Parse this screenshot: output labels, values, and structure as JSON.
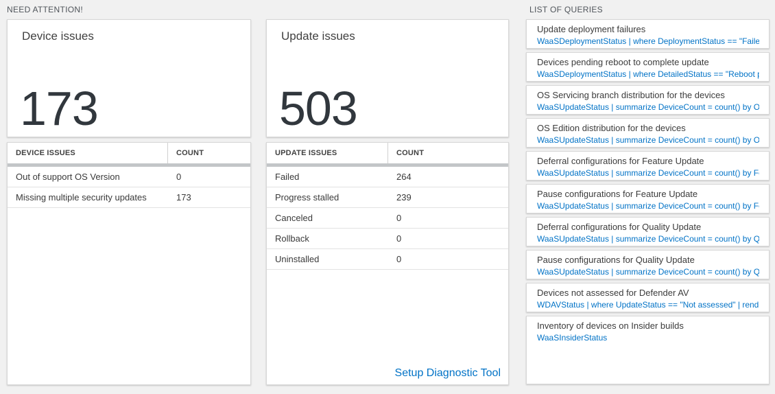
{
  "colors": {
    "page_bg": "#f1f1f1",
    "accent_blue": "#0072c6",
    "number_color": "#31373d",
    "gray_bar": "#c3c6c8"
  },
  "need_attention": {
    "header": "NEED ATTENTION!",
    "device_card": {
      "title": "Device issues",
      "value": "173"
    },
    "device_table": {
      "columns": [
        "DEVICE ISSUES",
        "COUNT"
      ],
      "rows": [
        {
          "label": "Out of support OS Version",
          "count": "0"
        },
        {
          "label": "Missing multiple security updates",
          "count": "173"
        }
      ]
    },
    "update_card": {
      "title": "Update issues",
      "value": "503"
    },
    "update_table": {
      "columns": [
        "UPDATE ISSUES",
        "COUNT"
      ],
      "rows": [
        {
          "label": "Failed",
          "count": "264"
        },
        {
          "label": "Progress stalled",
          "count": "239"
        },
        {
          "label": "Canceled",
          "count": "0"
        },
        {
          "label": "Rollback",
          "count": "0"
        },
        {
          "label": "Uninstalled",
          "count": "0"
        }
      ],
      "footer_link": "Setup Diagnostic Tool"
    }
  },
  "queries": {
    "header": "LIST OF QUERIES",
    "items": [
      {
        "title": "Update deployment failures",
        "query": "WaaSDeploymentStatus | where DeploymentStatus == \"Failed\" |..."
      },
      {
        "title": "Devices pending reboot to complete update",
        "query": "WaaSDeploymentStatus | where DetailedStatus == \"Reboot pend..."
      },
      {
        "title": "OS Servicing branch distribution for the devices",
        "query": "WaaSUpdateStatus | summarize DeviceCount = count() by OSSer..."
      },
      {
        "title": "OS Edition distribution for the devices",
        "query": "WaaSUpdateStatus | summarize DeviceCount = count() by OSEdit..."
      },
      {
        "title": "Deferral configurations for Feature Update",
        "query": "WaaSUpdateStatus | summarize DeviceCount = count() by Featur..."
      },
      {
        "title": "Pause configurations for Feature Update",
        "query": "WaaSUpdateStatus | summarize DeviceCount = count() by Featur..."
      },
      {
        "title": "Deferral configurations for Quality Update",
        "query": "WaaSUpdateStatus | summarize DeviceCount = count() by Qualit..."
      },
      {
        "title": "Pause configurations for Quality Update",
        "query": "WaaSUpdateStatus | summarize DeviceCount = count() by Qualit..."
      },
      {
        "title": "Devices not assessed for Defender AV",
        "query": "WDAVStatus | where UpdateStatus == \"Not assessed\" | render ta..."
      },
      {
        "title": "Inventory of devices on Insider builds",
        "query": "WaaSInsiderStatus"
      }
    ]
  }
}
